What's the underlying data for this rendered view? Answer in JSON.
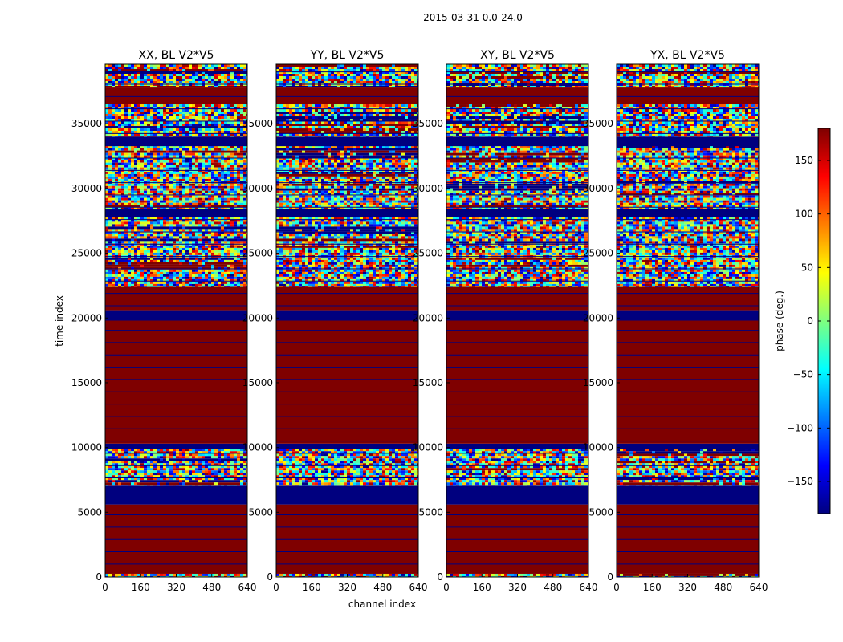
{
  "chart_data": {
    "type": "heatmap",
    "suptitle": "2015-03-31 0.0-24.0",
    "xlabel": "channel index",
    "ylabel": "time index",
    "xlim": [
      0,
      640
    ],
    "ylim": [
      0,
      39600
    ],
    "xticks": [
      "0",
      "160",
      "320",
      "480",
      "640"
    ],
    "yticks": [
      "0",
      "5000",
      "10000",
      "15000",
      "20000",
      "25000",
      "30000",
      "35000"
    ],
    "colorbar": {
      "label": "phase (deg.)",
      "range": [
        -180,
        180
      ],
      "ticks": [
        "150",
        "100",
        "50",
        "0",
        "−50",
        "−100",
        "−150"
      ],
      "colormap": [
        "#00007f",
        "#0000ff",
        "#007fff",
        "#00ffff",
        "#7fff7f",
        "#ffff00",
        "#ff7f00",
        "#ff0000",
        "#7f0000"
      ]
    },
    "panels": [
      {
        "title": "XX, BL V2*V5",
        "pol": "XX"
      },
      {
        "title": "YY, BL V2*V5",
        "pol": "YY"
      },
      {
        "title": "XY, BL V2*V5",
        "pol": "XY"
      },
      {
        "title": "YX, BL V2*V5",
        "pol": "YX"
      }
    ],
    "time_bands": [
      {
        "from": 0,
        "to": 250,
        "kind": "noise",
        "phase": 0
      },
      {
        "from": 250,
        "to": 5600,
        "kind": "solid",
        "phase": 180
      },
      {
        "from": 5600,
        "to": 7100,
        "kind": "solid",
        "phase": -180
      },
      {
        "from": 7100,
        "to": 8600,
        "kind": "noise",
        "phase": -60
      },
      {
        "from": 8600,
        "to": 9900,
        "kind": "noise",
        "phase": 0
      },
      {
        "from": 9900,
        "to": 10300,
        "kind": "solid",
        "phase": -180
      },
      {
        "from": 10300,
        "to": 19800,
        "kind": "solid",
        "phase": 180
      },
      {
        "from": 19800,
        "to": 20600,
        "kind": "solid",
        "phase": -180
      },
      {
        "from": 20600,
        "to": 22400,
        "kind": "solid",
        "phase": 180
      },
      {
        "from": 22400,
        "to": 25600,
        "kind": "noise",
        "phase": 0
      },
      {
        "from": 25600,
        "to": 27800,
        "kind": "noise",
        "phase": 20
      },
      {
        "from": 27800,
        "to": 28400,
        "kind": "solid",
        "phase": -180
      },
      {
        "from": 28400,
        "to": 30200,
        "kind": "noise",
        "phase": 0
      },
      {
        "from": 30200,
        "to": 31300,
        "kind": "noise",
        "phase": -90
      },
      {
        "from": 31300,
        "to": 33300,
        "kind": "noise",
        "phase": 140
      },
      {
        "from": 33300,
        "to": 34000,
        "kind": "solid",
        "phase": -180
      },
      {
        "from": 34000,
        "to": 36500,
        "kind": "noise",
        "phase": 150
      },
      {
        "from": 36500,
        "to": 37800,
        "kind": "solid",
        "phase": 180
      },
      {
        "from": 37800,
        "to": 39600,
        "kind": "noise",
        "phase": -150
      }
    ]
  }
}
